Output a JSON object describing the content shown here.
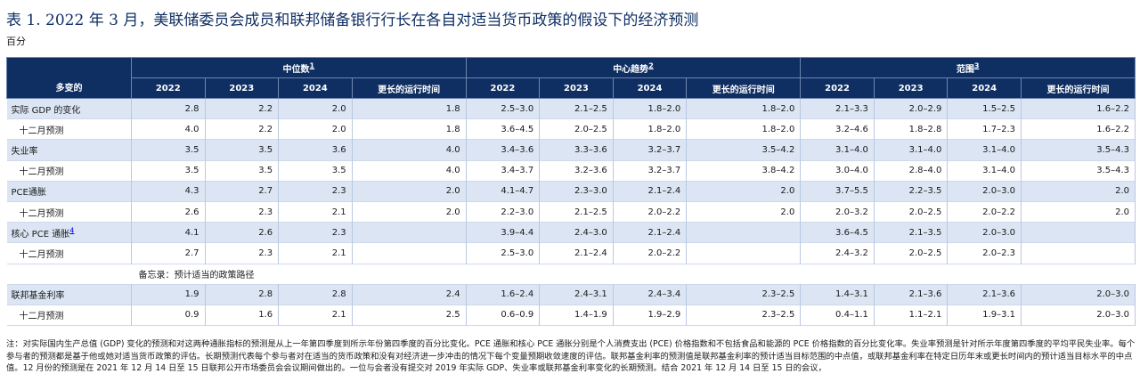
{
  "title": "表 1. 2022 年 3 月，美联储委员会成员和联邦储备银行行长在各自对适当货币政策的假设下的经济预测",
  "unit": "百分",
  "header": {
    "variable_label": "多变的",
    "groups": [
      {
        "label": "中位数",
        "note": "1"
      },
      {
        "label": "中心趋势",
        "note": "2"
      },
      {
        "label": "范围",
        "note": "3"
      }
    ],
    "years": [
      "2022",
      "2023",
      "2024",
      "更长的运行时间"
    ]
  },
  "rows": [
    {
      "label": "实际 GDP 的变化",
      "note": "",
      "sub": false,
      "shade": "blue",
      "values": [
        "2.8",
        "2.2",
        "2.0",
        "1.8",
        "2.5–3.0",
        "2.1–2.5",
        "1.8–2.0",
        "1.8–2.0",
        "2.1–3.3",
        "2.0–2.9",
        "1.5–2.5",
        "1.6–2.2"
      ]
    },
    {
      "label": "十二月预测",
      "note": "",
      "sub": true,
      "shade": "white",
      "values": [
        "4.0",
        "2.2",
        "2.0",
        "1.8",
        "3.6–4.5",
        "2.0–2.5",
        "1.8–2.0",
        "1.8–2.0",
        "3.2–4.6",
        "1.8–2.8",
        "1.7–2.3",
        "1.6–2.2"
      ]
    },
    {
      "label": "失业率",
      "note": "",
      "sub": false,
      "shade": "blue",
      "values": [
        "3.5",
        "3.5",
        "3.6",
        "4.0",
        "3.4–3.6",
        "3.3–3.6",
        "3.2–3.7",
        "3.5–4.2",
        "3.1–4.0",
        "3.1–4.0",
        "3.1–4.0",
        "3.5–4.3"
      ]
    },
    {
      "label": "十二月预测",
      "note": "",
      "sub": true,
      "shade": "white",
      "values": [
        "3.5",
        "3.5",
        "3.5",
        "4.0",
        "3.4–3.7",
        "3.2–3.6",
        "3.2–3.7",
        "3.8–4.2",
        "3.0–4.0",
        "2.8–4.0",
        "3.1–4.0",
        "3.5–4.3"
      ]
    },
    {
      "label": "PCE通胀",
      "note": "",
      "sub": false,
      "shade": "blue",
      "values": [
        "4.3",
        "2.7",
        "2.3",
        "2.0",
        "4.1–4.7",
        "2.3–3.0",
        "2.1–2.4",
        "2.0",
        "3.7–5.5",
        "2.2–3.5",
        "2.0–3.0",
        "2.0"
      ]
    },
    {
      "label": "十二月预测",
      "note": "",
      "sub": true,
      "shade": "white",
      "values": [
        "2.6",
        "2.3",
        "2.1",
        "2.0",
        "2.2–3.0",
        "2.1–2.5",
        "2.0–2.2",
        "2.0",
        "2.0–3.2",
        "2.0–2.5",
        "2.0–2.2",
        "2.0"
      ]
    },
    {
      "label": "核心 PCE 通胀",
      "note": "4",
      "sub": false,
      "shade": "blue",
      "values": [
        "4.1",
        "2.6",
        "2.3",
        "",
        "3.9–4.4",
        "2.4–3.0",
        "2.1–2.4",
        "",
        "3.6–4.5",
        "2.1–3.5",
        "2.0–3.0",
        ""
      ]
    },
    {
      "label": "十二月预测",
      "note": "",
      "sub": true,
      "shade": "white",
      "values": [
        "2.7",
        "2.3",
        "2.1",
        "",
        "2.5–3.0",
        "2.1–2.4",
        "2.0–2.2",
        "",
        "2.4–3.2",
        "2.0–2.5",
        "2.0–2.3",
        ""
      ]
    }
  ],
  "memo": "备忘录：预计适当的政策路径",
  "rows2": [
    {
      "label": "联邦基金利率",
      "note": "",
      "sub": false,
      "shade": "blue",
      "values": [
        "1.9",
        "2.8",
        "2.8",
        "2.4",
        "1.6–2.4",
        "2.4–3.1",
        "2.4–3.4",
        "2.3–2.5",
        "1.4–3.1",
        "2.1–3.6",
        "2.1–3.6",
        "2.0–3.0"
      ]
    },
    {
      "label": "十二月预测",
      "note": "",
      "sub": true,
      "shade": "white",
      "values": [
        "0.9",
        "1.6",
        "2.1",
        "2.5",
        "0.6–0.9",
        "1.4–1.9",
        "1.9–2.9",
        "2.3–2.5",
        "0.4–1.1",
        "1.1–2.1",
        "1.9–3.1",
        "2.0–3.0"
      ]
    }
  ],
  "footnote": "注：对实际国内生产总值 (GDP) 变化的预测和对这两种通胀指标的预测是从上一年第四季度到所示年份第四季度的百分比变化。PCE 通胀和核心 PCE 通胀分别是个人消费支出 (PCE) 价格指数和不包括食品和能源的 PCE 价格指数的百分比变化率。失业率预测是针对所示年度第四季度的平均平民失业率。每个参与者的预测都是基于他或她对适当货币政策的评估。长期预测代表每个参与者对在适当的货币政策和没有对经济进一步冲击的情况下每个变量预期收敛速度的评估。联邦基金利率的预测值是联邦基金利率的预计适当目标范围的中点值，或联邦基金利率在特定日历年末或更长时间内的预计适当目标水平的中点值。12 月份的预测是在 2021 年 12 月 14 日至 15 日联邦公开市场委员会会议期间做出的。一位与会者没有提交对 2019 年实际 GDP、失业率或联邦基金利率变化的长期预测。结合 2021 年 12 月 14 日至 15 日的会议，"
}
